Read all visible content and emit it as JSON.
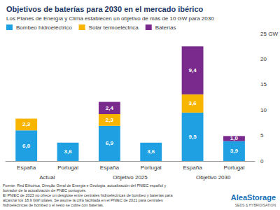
{
  "chart_data": {
    "type": "bar",
    "title": "Objetivos de baterías para 2030 en el mercado ibérico",
    "subtitle": "Los Planes de Energía y Clima establecen un objetivo de más de 10 GW para 2030",
    "categories": [
      "España",
      "Portugal",
      "España",
      "Portugal",
      "España",
      "Portugal"
    ],
    "group_labels": [
      "Actual",
      "Objetivo 2025",
      "Objetivo 2030"
    ],
    "series": [
      {
        "name": "Bombeo hidroeléctrico",
        "color": "#1ea0e3",
        "values": [
          6.0,
          3.6,
          6.9,
          3.6,
          9.5,
          3.9
        ],
        "value_labels": [
          "6,0",
          "3,6",
          "6,9",
          "3,6",
          "9,5",
          "3,9"
        ]
      },
      {
        "name": "Solar termoeléctrica",
        "color": "#f7b500",
        "values": [
          2.3,
          null,
          2.3,
          null,
          3.6,
          null
        ],
        "value_labels": [
          "2,3",
          null,
          "2,3",
          null,
          "3,6",
          null
        ]
      },
      {
        "name": "Baterías",
        "color": "#7a2a8c",
        "values": [
          null,
          null,
          2.4,
          null,
          9.4,
          1.0
        ],
        "value_labels": [
          null,
          null,
          "2,4",
          null,
          "9,4",
          "1,0"
        ]
      }
    ],
    "ylim": [
      0,
      25
    ],
    "yticks": [
      0,
      5,
      10,
      15,
      20,
      {
        "value": 25,
        "label": "25 GW"
      }
    ],
    "stacked": true,
    "data_labels": true,
    "grid": false,
    "legend": "top-left",
    "notes": [
      "Fuente: Red Eléctrica, Direção Geral de Energia e Geologia, actualización del PNIEC español y",
      "borrador de la actualización de PNEC portugués.",
      "El PNIEC de 2023 no ofrece un desglose entre centrales hidroeléctricas de bombeo y baterías para",
      "alcanzar los 18,9 GW totales. Se asume la cifra facilitada en el PNIEC de 2021 para centrales",
      "hidroeléctricas de bombeo y el resto se cubre con baterías."
    ],
    "logo": {
      "name": "AleaStorage",
      "tagline": "SEDS & HYBRIDISATION"
    }
  }
}
